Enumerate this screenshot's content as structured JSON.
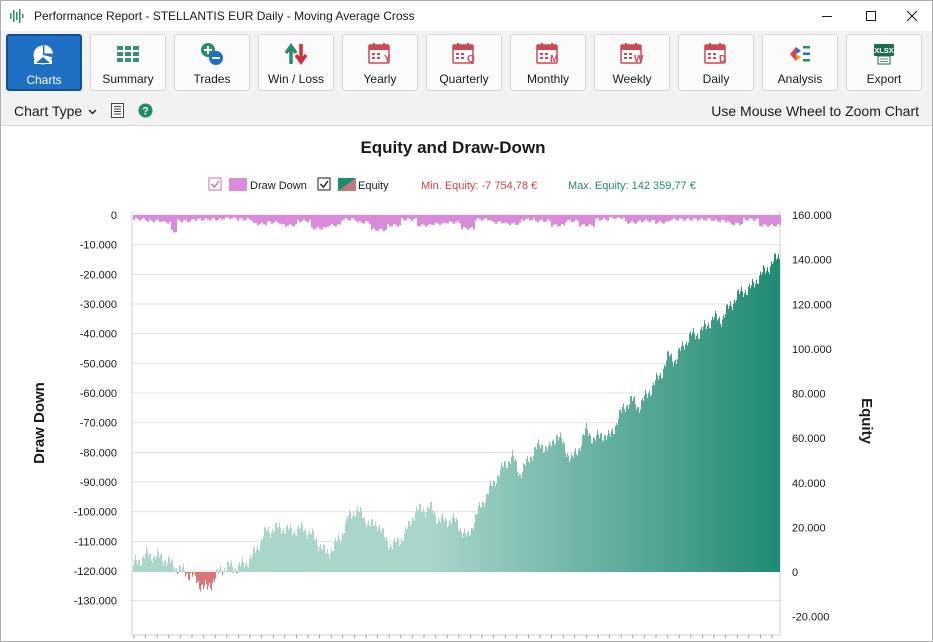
{
  "window": {
    "title": "Performance Report - STELLANTIS EUR Daily - Moving Average Cross"
  },
  "ribbon": {
    "buttons": [
      {
        "label": "Charts",
        "icon": "pie-chart-icon",
        "active": true
      },
      {
        "label": "Summary",
        "icon": "grid-table-icon",
        "active": false
      },
      {
        "label": "Trades",
        "icon": "plus-minus-icon",
        "active": false
      },
      {
        "label": "Win / Loss",
        "icon": "up-down-arrows-icon",
        "active": false
      },
      {
        "label": "Yearly",
        "icon": "calendar-y-icon",
        "active": false
      },
      {
        "label": "Quarterly",
        "icon": "calendar-q-icon",
        "active": false
      },
      {
        "label": "Monthly",
        "icon": "calendar-m-icon",
        "active": false
      },
      {
        "label": "Weekly",
        "icon": "calendar-w-icon",
        "active": false
      },
      {
        "label": "Daily",
        "icon": "calendar-d-icon",
        "active": false
      },
      {
        "label": "Analysis",
        "icon": "analysis-icon",
        "active": false
      },
      {
        "label": "Export",
        "icon": "xlsx-icon",
        "active": false
      }
    ]
  },
  "toolbar": {
    "chart_type_label": "Chart Type",
    "zoom_hint": "Use Mouse Wheel to Zoom Chart"
  },
  "colors": {
    "accent": "#1f6fc5",
    "equity": "#1f8a72",
    "equity_light": "#a9d5cb",
    "drawdown": "#d98ad8",
    "negative": "#d9767a"
  },
  "chart_data": {
    "type": "area",
    "title": "Equity and Draw-Down",
    "legend": {
      "placement": "top-center",
      "items": [
        {
          "name": "Draw Down",
          "checked": true,
          "color": "#d98ad8"
        },
        {
          "name": "Equity",
          "checked": true,
          "color": "#1f8a72"
        }
      ],
      "min_equity": "Min. Equity: -7 754,78 €",
      "max_equity": "Max. Equity: 142 359,77 €"
    },
    "left_axis": {
      "label": "Draw Down",
      "ticks": [
        "0",
        "-10.000",
        "-20.000",
        "-30.000",
        "-40.000",
        "-50.000",
        "-60.000",
        "-70.000",
        "-80.000",
        "-90.000",
        "-100.000",
        "-110.000",
        "-120.000",
        "-130.000"
      ],
      "range": [
        -135000,
        0
      ]
    },
    "right_axis": {
      "label": "Equity",
      "ticks": [
        "160.000",
        "140.000",
        "120.000",
        "100.000",
        "80.000",
        "60.000",
        "40.000",
        "20.000",
        "0",
        "-20.000"
      ],
      "range": [
        -22000,
        160000
      ]
    },
    "grid": true,
    "equity_series": [
      [
        0,
        3200
      ],
      [
        2,
        7800
      ],
      [
        4,
        6500
      ],
      [
        6,
        1800
      ],
      [
        8,
        -1500
      ],
      [
        9,
        -5200
      ],
      [
        10,
        -7700
      ],
      [
        11,
        -3000
      ],
      [
        12,
        1500
      ],
      [
        13,
        2500
      ],
      [
        14,
        1800
      ],
      [
        15,
        3500
      ],
      [
        16,
        6500
      ],
      [
        17,
        12500
      ],
      [
        18,
        18500
      ],
      [
        20,
        20000
      ],
      [
        21,
        18500
      ],
      [
        23,
        19500
      ],
      [
        24,
        17000
      ],
      [
        25,
        13000
      ],
      [
        26,
        8000
      ],
      [
        27,
        11000
      ],
      [
        28,
        16000
      ],
      [
        29,
        24500
      ],
      [
        30,
        28000
      ],
      [
        31,
        25000
      ],
      [
        32,
        20500
      ],
      [
        33,
        22000
      ],
      [
        34,
        14000
      ],
      [
        35,
        12000
      ],
      [
        36,
        14500
      ],
      [
        37,
        19500
      ],
      [
        38,
        27500
      ],
      [
        39,
        28000
      ],
      [
        40,
        29000
      ],
      [
        41,
        24000
      ],
      [
        42,
        22500
      ],
      [
        43,
        24000
      ],
      [
        44,
        20000
      ],
      [
        45,
        15000
      ],
      [
        46,
        24000
      ],
      [
        47,
        31000
      ],
      [
        48,
        37000
      ],
      [
        49,
        43000
      ],
      [
        50,
        48000
      ],
      [
        51,
        52000
      ],
      [
        52,
        44000
      ],
      [
        53,
        49000
      ],
      [
        54,
        55000
      ],
      [
        55,
        57000
      ],
      [
        56,
        55000
      ],
      [
        57,
        62000
      ],
      [
        58,
        56000
      ],
      [
        59,
        50000
      ],
      [
        60,
        56000
      ],
      [
        61,
        64000
      ],
      [
        62,
        59000
      ],
      [
        63,
        62000
      ],
      [
        64,
        60000
      ],
      [
        65,
        67000
      ],
      [
        66,
        74000
      ],
      [
        67,
        77000
      ],
      [
        68,
        74000
      ],
      [
        69,
        79000
      ],
      [
        70,
        84000
      ],
      [
        71,
        89000
      ],
      [
        72,
        97000
      ],
      [
        73,
        95000
      ],
      [
        74,
        102000
      ],
      [
        75,
        106000
      ],
      [
        76,
        107000
      ],
      [
        77,
        110000
      ],
      [
        78,
        114000
      ],
      [
        79,
        113000
      ],
      [
        80,
        118000
      ],
      [
        81,
        123000
      ],
      [
        82,
        126000
      ],
      [
        83,
        127000
      ],
      [
        84,
        132000
      ],
      [
        85,
        135000
      ],
      [
        86,
        139000
      ],
      [
        87,
        142000
      ]
    ],
    "equity_x_range": [
      0,
      87
    ],
    "drawdown_series": [
      [
        0,
        -1500
      ],
      [
        2,
        -2000
      ],
      [
        4,
        -2500
      ],
      [
        5,
        -5500
      ],
      [
        6,
        -2000
      ],
      [
        8,
        -1500
      ],
      [
        10,
        -1500
      ],
      [
        12,
        -1000
      ],
      [
        14,
        -1500
      ],
      [
        16,
        -3000
      ],
      [
        18,
        -2500
      ],
      [
        20,
        -3500
      ],
      [
        22,
        -2000
      ],
      [
        24,
        -4500
      ],
      [
        26,
        -3500
      ],
      [
        28,
        -1500
      ],
      [
        30,
        -2500
      ],
      [
        32,
        -5000
      ],
      [
        34,
        -3500
      ],
      [
        36,
        -1500
      ],
      [
        38,
        -3500
      ],
      [
        40,
        -3000
      ],
      [
        42,
        -2500
      ],
      [
        44,
        -4500
      ],
      [
        46,
        -1500
      ],
      [
        48,
        -2500
      ],
      [
        50,
        -3000
      ],
      [
        52,
        -1500
      ],
      [
        54,
        -2000
      ],
      [
        56,
        -3500
      ],
      [
        58,
        -2000
      ],
      [
        60,
        -3500
      ],
      [
        62,
        -1500
      ],
      [
        64,
        -1000
      ],
      [
        66,
        -2500
      ],
      [
        68,
        -2000
      ],
      [
        70,
        -2500
      ],
      [
        72,
        -1500
      ],
      [
        74,
        -1500
      ],
      [
        76,
        -1500
      ],
      [
        78,
        -2000
      ],
      [
        80,
        -3000
      ],
      [
        82,
        -1500
      ],
      [
        84,
        -3500
      ],
      [
        86,
        -3500
      ],
      [
        87,
        -3500
      ]
    ]
  }
}
